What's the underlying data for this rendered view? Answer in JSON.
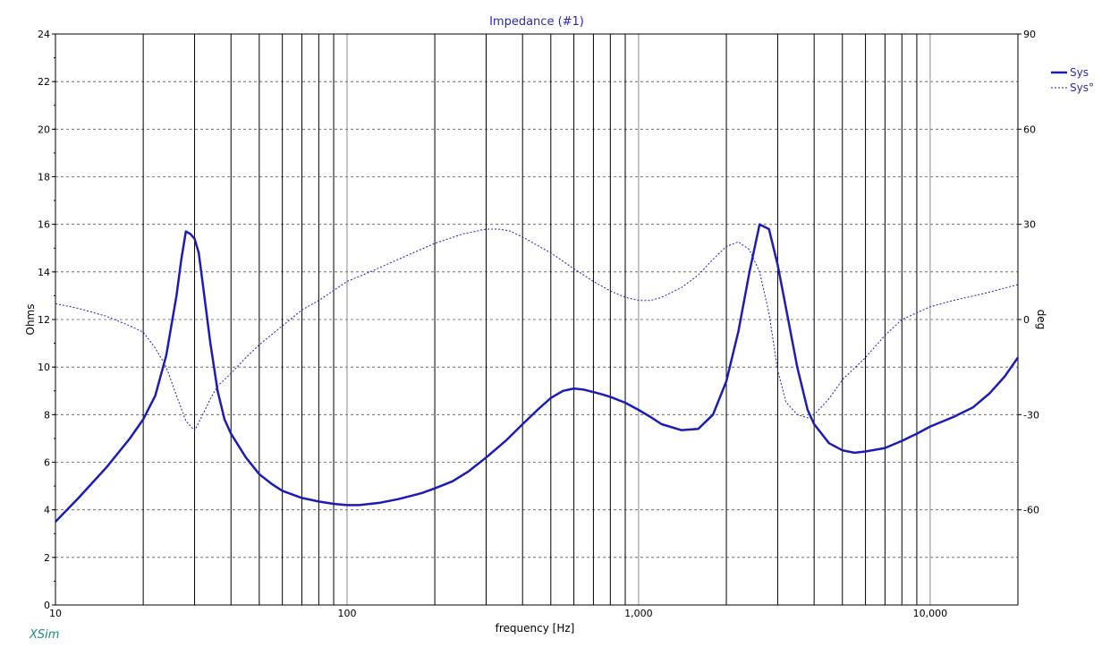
{
  "chart_data": {
    "type": "line",
    "title": "Impedance (#1)",
    "xlabel": "frequency [Hz]",
    "ylabel": "Ohms",
    "y2label": "deg",
    "xscale": "log",
    "xlim": [
      10,
      20000
    ],
    "ylim": [
      0,
      24
    ],
    "y2lim": [
      -90,
      90
    ],
    "x_ticks": [
      10,
      100,
      1000,
      10000
    ],
    "x_tick_labels": [
      "10",
      "100",
      "1,000",
      "10,000"
    ],
    "y_ticks": [
      0,
      2,
      4,
      6,
      8,
      10,
      12,
      14,
      16,
      18,
      20,
      22,
      24
    ],
    "y_tick_labels": [
      "0",
      "2",
      "4",
      "6",
      "8",
      "10",
      "12",
      "14",
      "16",
      "18",
      "20",
      "22",
      "24"
    ],
    "y2_ticks": [
      -60,
      -30,
      0,
      30,
      60,
      90
    ],
    "y2_tick_labels": [
      "-60",
      "-30",
      "0",
      "30",
      "60",
      "90"
    ],
    "grid": true,
    "legend_position": "top-right",
    "series": [
      {
        "name": "Sys",
        "axis": "left",
        "style": "solid",
        "color": "#1c1cb4",
        "x": [
          10,
          12,
          15,
          18,
          20,
          22,
          24,
          26,
          27,
          28,
          29,
          30,
          31,
          32,
          34,
          36,
          38,
          40,
          45,
          50,
          55,
          60,
          70,
          80,
          90,
          100,
          110,
          130,
          150,
          180,
          200,
          230,
          260,
          300,
          350,
          400,
          450,
          500,
          550,
          600,
          650,
          700,
          750,
          800,
          900,
          1000,
          1100,
          1200,
          1400,
          1600,
          1800,
          2000,
          2200,
          2400,
          2600,
          2800,
          3000,
          3200,
          3500,
          3800,
          4000,
          4500,
          5000,
          5500,
          6000,
          7000,
          8000,
          9000,
          10000,
          12000,
          14000,
          16000,
          18000,
          20000
        ],
        "values": [
          3.5,
          4.5,
          5.8,
          7.0,
          7.8,
          8.8,
          10.5,
          13.0,
          14.5,
          15.7,
          15.6,
          15.4,
          14.8,
          13.5,
          11.0,
          9.0,
          7.8,
          7.2,
          6.2,
          5.5,
          5.1,
          4.8,
          4.5,
          4.35,
          4.25,
          4.2,
          4.2,
          4.3,
          4.45,
          4.7,
          4.9,
          5.2,
          5.6,
          6.2,
          6.9,
          7.6,
          8.2,
          8.7,
          9.0,
          9.1,
          9.05,
          8.95,
          8.85,
          8.75,
          8.5,
          8.2,
          7.9,
          7.6,
          7.35,
          7.4,
          8.0,
          9.4,
          11.5,
          14.0,
          16.0,
          15.8,
          14.3,
          12.5,
          10.0,
          8.2,
          7.6,
          6.8,
          6.5,
          6.4,
          6.45,
          6.6,
          6.9,
          7.2,
          7.5,
          7.9,
          8.3,
          8.9,
          9.6,
          10.4
        ]
      },
      {
        "name": "Sys°",
        "axis": "right",
        "style": "dashed",
        "color": "#1c1cb4",
        "x": [
          10,
          12,
          15,
          18,
          20,
          22,
          24,
          26,
          28,
          30,
          32,
          34,
          36,
          40,
          45,
          50,
          60,
          70,
          80,
          100,
          120,
          150,
          200,
          250,
          300,
          330,
          360,
          400,
          500,
          600,
          700,
          800,
          900,
          1000,
          1100,
          1200,
          1400,
          1600,
          1800,
          2000,
          2200,
          2400,
          2600,
          2800,
          3000,
          3200,
          3500,
          3800,
          4000,
          4500,
          5000,
          6000,
          7000,
          8000,
          10000,
          12000,
          15000,
          20000
        ],
        "values": [
          5,
          3.5,
          1,
          -2,
          -4,
          -9,
          -15,
          -24,
          -32,
          -35,
          -30,
          -25,
          -21,
          -17,
          -12,
          -8,
          -2,
          3,
          6,
          12,
          15,
          19,
          24,
          27,
          28.5,
          28.5,
          28,
          26,
          21,
          16,
          12,
          9,
          7,
          6,
          6,
          7,
          10,
          14,
          19,
          23,
          24.5,
          22,
          15,
          2,
          -16,
          -26,
          -30,
          -31,
          -30,
          -25,
          -19,
          -12,
          -5,
          0,
          4,
          6,
          8,
          11
        ]
      }
    ]
  },
  "minor_grid_frequencies": [
    20,
    30,
    40,
    50,
    60,
    70,
    80,
    90,
    200,
    300,
    400,
    500,
    600,
    700,
    800,
    900,
    2000,
    3000,
    4000,
    5000,
    6000,
    7000,
    8000,
    9000
  ],
  "major_grid_frequencies": [
    100,
    1000,
    10000
  ],
  "legend": [
    {
      "label": "Sys",
      "style": "solid"
    },
    {
      "label": "Sys°",
      "style": "dashed"
    }
  ],
  "app": {
    "logo_text": "XSim"
  },
  "colors": {
    "curve": "#1c1cb4",
    "logo": "#1b8a8a",
    "title": "#2a2ab0"
  }
}
